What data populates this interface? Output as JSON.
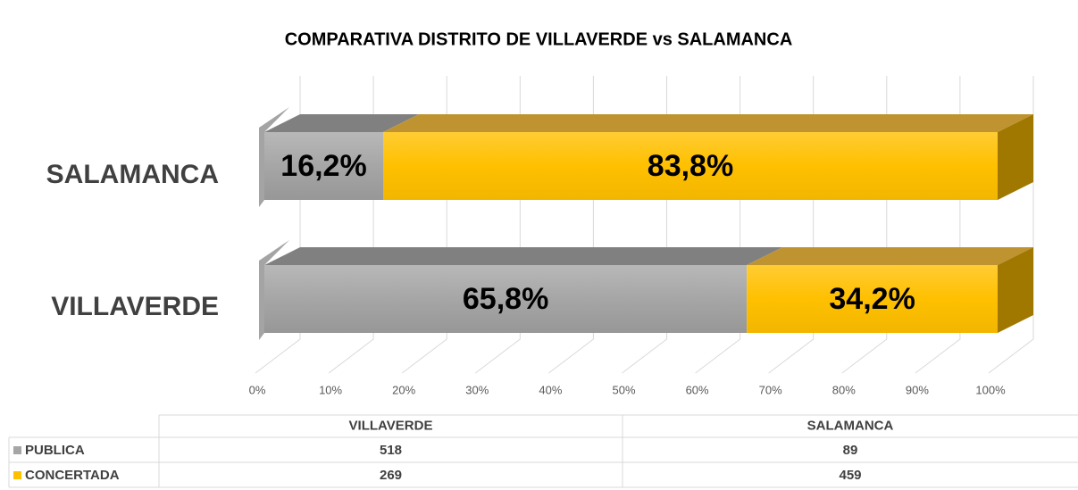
{
  "chart_data": {
    "type": "bar",
    "orientation": "horizontal",
    "stacked": "percent",
    "three_d": true,
    "title": "COMPARATIVA DISTRITO DE VILLAVERDE vs SALAMANCA",
    "categories": [
      "VILLAVERDE",
      "SALAMANCA"
    ],
    "series": [
      {
        "name": "PUBLICA",
        "color": "#a6a6a6",
        "values": [
          65.8,
          16.2
        ],
        "value_labels": [
          "65,8%",
          "16,2%"
        ],
        "counts": [
          518,
          89
        ]
      },
      {
        "name": "CONCERTADA",
        "color": "#ffc000",
        "values": [
          34.2,
          83.8
        ],
        "value_labels": [
          "34,2%",
          "83,8%"
        ],
        "counts": [
          269,
          459
        ]
      }
    ],
    "xlim": [
      0,
      100
    ],
    "xticks": [
      {
        "value": 0,
        "label": "0%"
      },
      {
        "value": 10,
        "label": "10%"
      },
      {
        "value": 20,
        "label": "20%"
      },
      {
        "value": 30,
        "label": "30%"
      },
      {
        "value": 40,
        "label": "40%"
      },
      {
        "value": 50,
        "label": "50%"
      },
      {
        "value": 60,
        "label": "60%"
      },
      {
        "value": 70,
        "label": "70%"
      },
      {
        "value": 80,
        "label": "80%"
      },
      {
        "value": 90,
        "label": "90%"
      },
      {
        "value": 100,
        "label": "100%"
      }
    ],
    "grid": true,
    "data_table": true
  }
}
